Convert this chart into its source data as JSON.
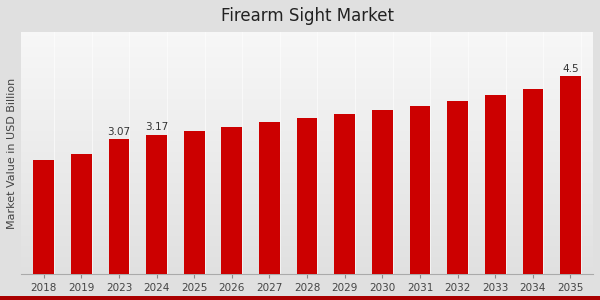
{
  "title": "Firearm Sight Market",
  "ylabel": "Market Value in USD Billion",
  "categories": [
    "2018",
    "2019",
    "2023",
    "2024",
    "2025",
    "2026",
    "2027",
    "2028",
    "2029",
    "2030",
    "2031",
    "2032",
    "2033",
    "2034",
    "2035"
  ],
  "values": [
    2.6,
    2.72,
    3.07,
    3.17,
    3.25,
    3.35,
    3.45,
    3.55,
    3.63,
    3.72,
    3.82,
    3.93,
    4.07,
    4.2,
    4.5
  ],
  "bar_color": "#cc0000",
  "background_color": "#e0e0e0",
  "annotations": {
    "2023": "3.07",
    "2024": "3.17",
    "2035": "4.5"
  },
  "title_fontsize": 12,
  "ylabel_fontsize": 8,
  "tick_fontsize": 7.5,
  "annotation_fontsize": 7.5,
  "ylim": [
    0,
    5.5
  ],
  "bottom_bar_color": "#aa0000",
  "bottom_bar_height": 0.012
}
